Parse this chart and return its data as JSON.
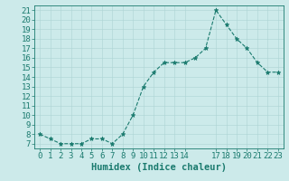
{
  "x": [
    0,
    1,
    2,
    3,
    4,
    5,
    6,
    7,
    8,
    9,
    10,
    11,
    12,
    13,
    14,
    15,
    16,
    17,
    18,
    19,
    20,
    21,
    22,
    23
  ],
  "y": [
    8,
    7.5,
    7,
    7,
    7,
    7.5,
    7.5,
    7,
    8,
    10,
    13,
    14.5,
    15.5,
    15.5,
    15.5,
    16,
    17,
    21,
    19.5,
    18,
    17,
    15.5,
    14.5,
    14.5
  ],
  "line_color": "#1a7a6e",
  "marker_color": "#1a7a6e",
  "bg_color": "#cceaea",
  "grid_color": "#add4d4",
  "axis_color": "#1a7a6e",
  "xlabel": "Humidex (Indice chaleur)",
  "xlim": [
    -0.5,
    23.5
  ],
  "ylim": [
    6.5,
    21.5
  ],
  "yticks": [
    7,
    8,
    9,
    10,
    11,
    12,
    13,
    14,
    15,
    16,
    17,
    18,
    19,
    20,
    21
  ],
  "xticks": [
    0,
    1,
    2,
    3,
    4,
    5,
    6,
    7,
    8,
    9,
    10,
    11,
    12,
    13,
    14,
    17,
    18,
    19,
    20,
    21,
    22,
    23
  ],
  "xtick_labels": [
    "0",
    "1",
    "2",
    "3",
    "4",
    "5",
    "6",
    "7",
    "8",
    "9",
    "10",
    "11",
    "12",
    "13",
    "14",
    "17",
    "18",
    "19",
    "20",
    "21",
    "22",
    "23"
  ],
  "font_color": "#1a7a6e",
  "font_size": 6.5,
  "xlabel_fontsize": 7.5,
  "linewidth": 0.8,
  "markersize": 3.5
}
